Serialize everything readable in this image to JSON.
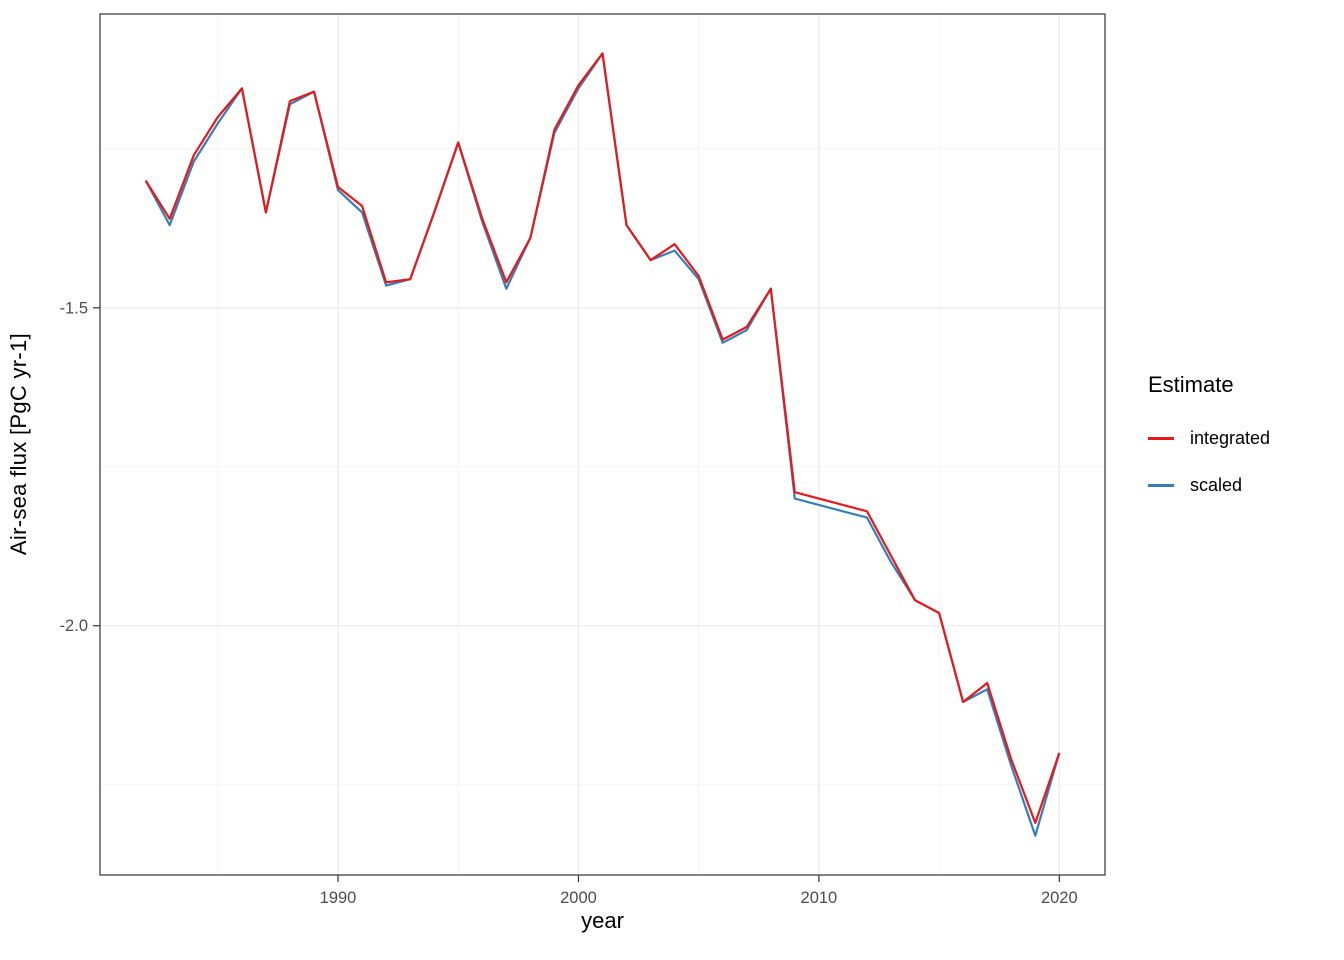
{
  "figure": {
    "x_axis_title": "year",
    "y_axis_title": "Air-sea flux [PgC yr-1]"
  },
  "legend": {
    "title": "Estimate",
    "items": [
      {
        "label": "integrated",
        "color": "#e41a1c"
      },
      {
        "label": "scaled",
        "color": "#377eb8"
      }
    ]
  },
  "theme": {
    "background": "#ffffff",
    "panel_border": "#333333",
    "grid_major": "#ebebeb",
    "grid_minor": "#f5f5f5",
    "tick_color": "#333333",
    "tick_label_color": "#4d4d4d",
    "axis_title_color": "#000000"
  },
  "chart_data": {
    "type": "line",
    "title": "",
    "xlabel": "year",
    "ylabel": "Air-sea flux [PgC yr-1]",
    "legend_title": "Estimate",
    "legend_position": "right",
    "grid": true,
    "xlim": [
      1980.1,
      2021.9
    ],
    "ylim": [
      -2.392,
      -1.038
    ],
    "x_ticks": {
      "major": [
        1990,
        2000,
        2010,
        2020
      ],
      "minor": [
        1985,
        1995,
        2005,
        2015
      ]
    },
    "y_ticks": {
      "major": [
        -1.5,
        -2.0
      ],
      "minor": [
        -1.25,
        -1.75,
        -2.25
      ]
    },
    "x_tick_labels": [
      "1990",
      "2000",
      "2010",
      "2020"
    ],
    "y_tick_labels": [
      "-1.5",
      "-2.0"
    ],
    "x": [
      1982,
      1983,
      1984,
      1985,
      1986,
      1987,
      1988,
      1989,
      1990,
      1991,
      1992,
      1993,
      1994,
      1995,
      1996,
      1997,
      1998,
      1999,
      2000,
      2001,
      2002,
      2003,
      2004,
      2005,
      2006,
      2007,
      2008,
      2009,
      2010,
      2011,
      2012,
      2013,
      2014,
      2015,
      2016,
      2017,
      2018,
      2019,
      2020
    ],
    "series": [
      {
        "name": "integrated",
        "color": "#e41a1c",
        "values": [
          -1.3,
          -1.36,
          -1.26,
          -1.2,
          -1.155,
          -1.35,
          -1.175,
          -1.16,
          -1.31,
          -1.34,
          -1.46,
          -1.455,
          -1.35,
          -1.24,
          -1.36,
          -1.46,
          -1.39,
          -1.22,
          -1.15,
          -1.1,
          -1.37,
          -1.425,
          -1.4,
          -1.45,
          -1.55,
          -1.53,
          -1.47,
          -1.79,
          -1.8,
          -1.81,
          -1.82,
          -1.89,
          -1.96,
          -1.98,
          -2.12,
          -2.09,
          -2.21,
          -2.31,
          -2.2
        ]
      },
      {
        "name": "scaled",
        "color": "#377eb8",
        "values": [
          -1.3,
          -1.37,
          -1.27,
          -1.21,
          -1.155,
          -1.35,
          -1.18,
          -1.16,
          -1.315,
          -1.35,
          -1.465,
          -1.455,
          -1.35,
          -1.24,
          -1.365,
          -1.47,
          -1.39,
          -1.225,
          -1.155,
          -1.1,
          -1.37,
          -1.425,
          -1.41,
          -1.455,
          -1.555,
          -1.535,
          -1.47,
          -1.8,
          -1.81,
          -1.82,
          -1.83,
          -1.9,
          -1.96,
          -1.98,
          -2.12,
          -2.1,
          -2.22,
          -2.33,
          -2.2
        ]
      }
    ]
  }
}
